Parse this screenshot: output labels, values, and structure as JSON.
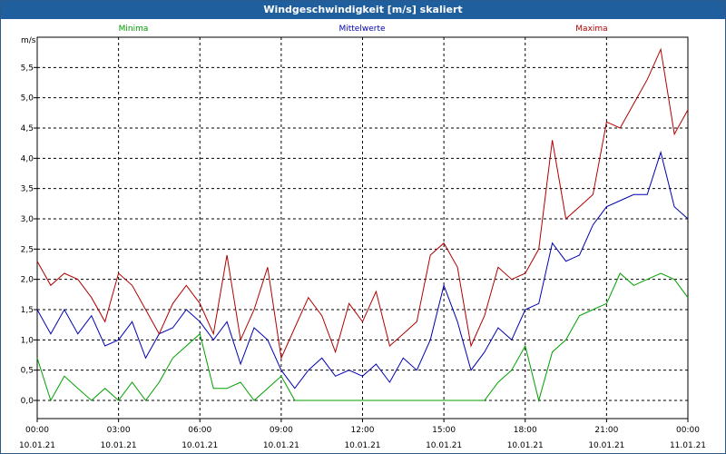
{
  "window": {
    "title": "Windgeschwindigkeit [m/s] skaliert"
  },
  "chart_data": {
    "type": "line",
    "title": "Windgeschwindigkeit [m/s] skaliert",
    "ylabel": "m/s",
    "ylim": [
      -0.3,
      6.0
    ],
    "xlim": [
      0,
      24
    ],
    "y_ticks": [
      "0,0",
      "0,5",
      "1,0",
      "1,5",
      "2,0",
      "2,5",
      "3,0",
      "3,5",
      "4,0",
      "4,5",
      "5,0",
      "5,5"
    ],
    "y_tick_values": [
      0,
      0.5,
      1,
      1.5,
      2,
      2.5,
      3,
      3.5,
      4,
      4.5,
      5,
      5.5
    ],
    "x_ticks": [
      {
        "time": "00:00",
        "date": "10.01.21"
      },
      {
        "time": "03:00",
        "date": "10.01.21"
      },
      {
        "time": "06:00",
        "date": "10.01.21"
      },
      {
        "time": "09:00",
        "date": "10.01.21"
      },
      {
        "time": "12:00",
        "date": "10.01.21"
      },
      {
        "time": "15:00",
        "date": "10.01.21"
      },
      {
        "time": "18:00",
        "date": "10.01.21"
      },
      {
        "time": "21:00",
        "date": "10.01.21"
      },
      {
        "time": "00:00",
        "date": "11.01.21"
      }
    ],
    "grid": true,
    "series": [
      {
        "name": "Minima",
        "color": "#00a000",
        "x": [
          0,
          0.5,
          1,
          1.5,
          2,
          2.5,
          3,
          3.5,
          4,
          4.5,
          5,
          5.5,
          6,
          6.5,
          7,
          7.5,
          8,
          8.5,
          9,
          9.5,
          10,
          10.5,
          11,
          11.5,
          12,
          12.5,
          13,
          13.5,
          14,
          14.5,
          15,
          15.5,
          16,
          16.5,
          17,
          17.5,
          18,
          18.5,
          19,
          19.5,
          20,
          20.5,
          21,
          21.5,
          22,
          22.5,
          23,
          23.5,
          24
        ],
        "values": [
          0.7,
          0.0,
          0.4,
          0.2,
          0.0,
          0.2,
          0.0,
          0.3,
          0.0,
          0.3,
          0.7,
          0.9,
          1.1,
          0.2,
          0.2,
          0.3,
          0.0,
          0.2,
          0.4,
          0.0,
          0.0,
          0.0,
          0.0,
          0.0,
          0.0,
          0.0,
          0.0,
          0.0,
          0.0,
          0.0,
          0.0,
          0.0,
          0.0,
          0.0,
          0.3,
          0.5,
          0.9,
          0.0,
          0.8,
          1.0,
          1.4,
          1.5,
          1.6,
          2.1,
          1.9,
          2.0,
          2.1,
          2.0,
          1.7
        ]
      },
      {
        "name": "Mittelwerte",
        "color": "#0000b0",
        "x": [
          0,
          0.5,
          1,
          1.5,
          2,
          2.5,
          3,
          3.5,
          4,
          4.5,
          5,
          5.5,
          6,
          6.5,
          7,
          7.5,
          8,
          8.5,
          9,
          9.5,
          10,
          10.5,
          11,
          11.5,
          12,
          12.5,
          13,
          13.5,
          14,
          14.5,
          15,
          15.5,
          16,
          16.5,
          17,
          17.5,
          18,
          18.5,
          19,
          19.5,
          20,
          20.5,
          21,
          21.5,
          22,
          22.5,
          23,
          23.5,
          24
        ],
        "values": [
          1.5,
          1.1,
          1.5,
          1.1,
          1.4,
          0.9,
          1.0,
          1.3,
          0.7,
          1.1,
          1.2,
          1.5,
          1.3,
          1.0,
          1.3,
          0.6,
          1.2,
          1.0,
          0.5,
          0.2,
          0.5,
          0.7,
          0.4,
          0.5,
          0.4,
          0.6,
          0.3,
          0.7,
          0.5,
          1.0,
          1.9,
          1.3,
          0.5,
          0.8,
          1.2,
          1.0,
          1.5,
          1.6,
          2.6,
          2.3,
          2.4,
          2.9,
          3.2,
          3.3,
          3.4,
          3.4,
          4.1,
          3.2,
          3.0
        ]
      },
      {
        "name": "Maxima",
        "color": "#b00000",
        "x": [
          0,
          0.5,
          1,
          1.5,
          2,
          2.5,
          3,
          3.5,
          4,
          4.5,
          5,
          5.5,
          6,
          6.5,
          7,
          7.5,
          8,
          8.5,
          9,
          9.5,
          10,
          10.5,
          11,
          11.5,
          12,
          12.5,
          13,
          13.5,
          14,
          14.5,
          15,
          15.5,
          16,
          16.5,
          17,
          17.5,
          18,
          18.5,
          19,
          19.5,
          20,
          20.5,
          21,
          21.5,
          22,
          22.5,
          23,
          23.5,
          24
        ],
        "values": [
          2.3,
          1.9,
          2.1,
          2.0,
          1.7,
          1.3,
          2.1,
          1.9,
          1.5,
          1.1,
          1.6,
          1.9,
          1.6,
          1.1,
          2.4,
          1.0,
          1.5,
          2.2,
          0.7,
          1.2,
          1.7,
          1.4,
          0.8,
          1.6,
          1.3,
          1.8,
          0.9,
          1.1,
          1.3,
          2.4,
          2.6,
          2.2,
          0.9,
          1.4,
          2.2,
          2.0,
          2.1,
          2.5,
          4.3,
          3.0,
          3.2,
          3.4,
          4.6,
          4.5,
          4.9,
          5.3,
          5.8,
          4.4,
          4.8
        ]
      }
    ]
  }
}
